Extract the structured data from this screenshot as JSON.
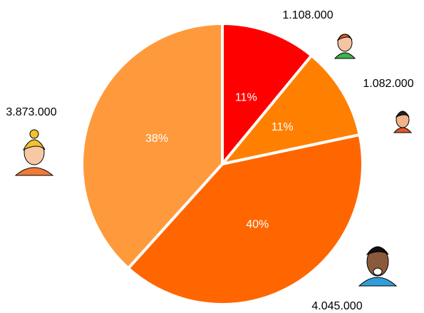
{
  "chart_data": {
    "type": "pie",
    "categories": [
      null,
      null,
      null,
      null
    ],
    "values": [
      1108000,
      1082000,
      4045000,
      3873000
    ],
    "value_labels": [
      "1.108.000",
      "1.082.000",
      "4.045.000",
      "3.873.000"
    ],
    "percent_labels": [
      "11%",
      "11%",
      "40%",
      "38%"
    ],
    "colors": [
      "#ff0000",
      "#ff8000",
      "#ff6600",
      "#ff9a3c"
    ]
  }
}
